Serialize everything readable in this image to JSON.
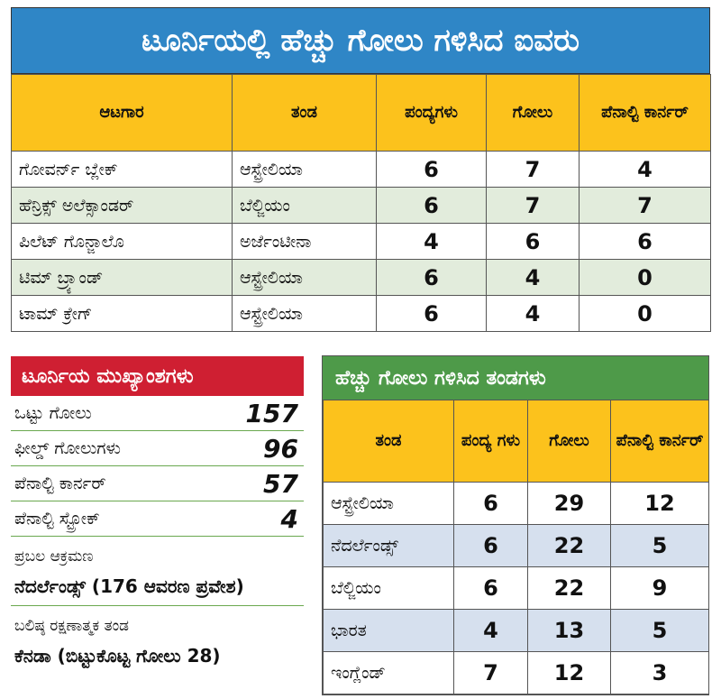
{
  "top_scorers": {
    "title": "ಟೂರ್ನಿಯಲ್ಲಿ ಹೆಚ್ಚು ಗೋಲು ಗಳಿಸಿದ ಐವರು",
    "headers": [
      "ಆಟಗಾರ",
      "ತಂಡ",
      "ಪಂದ್ಯಗಳು",
      "ಗೋಲು",
      "ಪೆನಾಲ್ಟಿ ಕಾರ್ನರ್"
    ],
    "rows": [
      [
        "ಗೋವರ್ನ್ ಬ್ಲೇಕ್",
        "ಆಸ್ಟ್ರೇಲಿಯಾ",
        "6",
        "7",
        "4"
      ],
      [
        "ಹೆನ್ರಿಕ್ಸ್ ಅಲೆಕ್ಸಾಂಡರ್",
        "ಬೆಲ್ಜಿಯಂ",
        "6",
        "7",
        "7"
      ],
      [
        "ಪಿಲೆಟ್ ಗೊನ್ಜಾಲೊ",
        "ಅರ್ಜೆಂಟೀನಾ",
        "4",
        "6",
        "6"
      ],
      [
        "ಟಿಮ್ ಬ್ರ್ಯಾಂಡ್",
        "ಆಸ್ಟ್ರೇಲಿಯಾ",
        "6",
        "4",
        "0"
      ],
      [
        "ಟಾಮ್ ಕ್ರೇಗ್",
        "ಆಸ್ಟ್ರೇಲಿಯಾ",
        "6",
        "4",
        "0"
      ]
    ]
  },
  "highlights": {
    "title": "ಟೂರ್ನಿಯ ಮುಖ್ಯಾಂಶಗಳು",
    "stats": [
      {
        "label": "ಒಟ್ಟು ಗೋಲು",
        "value": "157"
      },
      {
        "label": "ಫೀಲ್ಡ್ ಗೋಲುಗಳು",
        "value": "96"
      },
      {
        "label": "ಪೆನಾಲ್ಟಿ ಕಾರ್ನರ್",
        "value": "57"
      },
      {
        "label": "ಪೆನಾಲ್ಟಿ ಸ್ಟ್ರೋಕ್",
        "value": "4"
      }
    ],
    "attack_label": "ಪ್ರಬಲ ಆಕ್ರಮಣ",
    "attack_value": "ನೆದರ್ಲೆಂಡ್ಸ್ (176 ಆವರಣ ಪ್ರವೇಶ)",
    "defence_label": "ಬಲಿಷ್ಠ ರಕ್ಷಣಾತ್ಮಕ ತಂಡ",
    "defence_value": "ಕೆನಡಾ (ಬಿಟ್ಟುಕೊಟ್ಟ ಗೋಲು 28)"
  },
  "top_teams": {
    "title": "ಹೆಚ್ಚು ಗೋಲು ಗಳಿಸಿದ ತಂಡಗಳು",
    "headers": [
      "ತಂಡ",
      "ಪಂದ್ಯ ಗಳು",
      "ಗೋಲು",
      "ಪೆನಾಲ್ಟಿ ಕಾರ್ನರ್"
    ],
    "rows": [
      [
        "ಆಸ್ಟ್ರೇಲಿಯಾ",
        "6",
        "29",
        "12"
      ],
      [
        "ನೆದರ್ಲೆಂಡ್ಸ್",
        "6",
        "22",
        "5"
      ],
      [
        "ಬೆಲ್ಜಿಯಂ",
        "6",
        "22",
        "9"
      ],
      [
        "ಭಾರತ",
        "4",
        "13",
        "5"
      ],
      [
        "ಇಂಗ್ಲೆಂಡ್",
        "7",
        "12",
        "3"
      ]
    ]
  }
}
